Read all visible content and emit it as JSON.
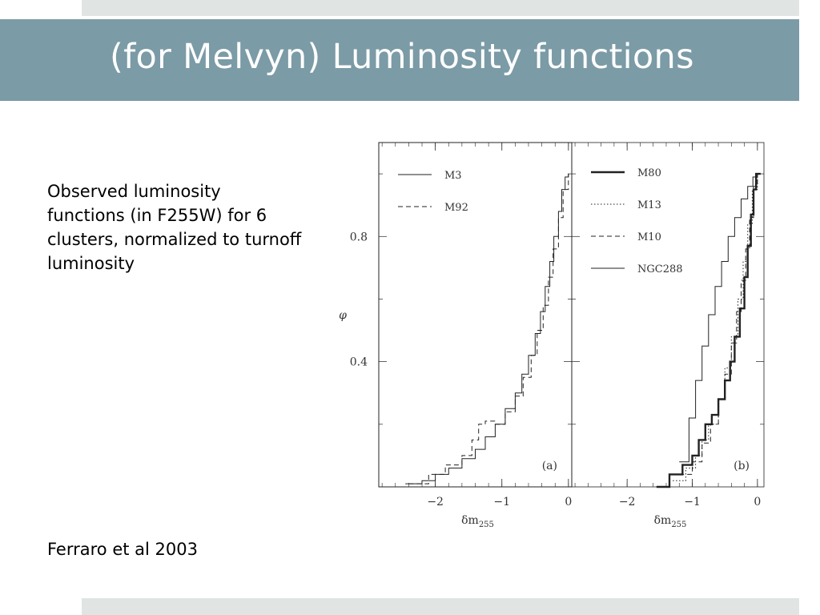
{
  "slide": {
    "title": "(for Melvyn) Luminosity functions",
    "body_text": "Observed luminosity functions (in F255W) for 6 clusters, normalized to turnoff luminosity",
    "citation": "Ferraro et al 2003"
  },
  "colors": {
    "title_bar": "#7b9ba6",
    "strips": "#e0e5e4",
    "title_text": "#ffffff"
  },
  "chart_data": [
    {
      "panel": "a",
      "type": "line",
      "panel_label": "(a)",
      "xlabel": "δm",
      "xlabel_sub": "255",
      "ylabel": "φ",
      "xlim": [
        -2.85,
        0.05
      ],
      "ylim": [
        0,
        1.1
      ],
      "xticks": [
        -2,
        -1,
        0
      ],
      "xtick_labels": [
        "−2",
        "−1",
        "0"
      ],
      "yticks": [
        0.4,
        0.8
      ],
      "ytick_labels": [
        "0.4",
        "0.8"
      ],
      "legend_position": "top-left",
      "series": [
        {
          "name": "M3",
          "style": "solid",
          "x": [
            -2.45,
            -2.2,
            -2.0,
            -1.8,
            -1.6,
            -1.4,
            -1.25,
            -1.1,
            -0.95,
            -0.8,
            -0.7,
            -0.6,
            -0.5,
            -0.42,
            -0.35,
            -0.28,
            -0.22,
            -0.15,
            -0.1,
            -0.05,
            0
          ],
          "y": [
            0.01,
            0.02,
            0.04,
            0.06,
            0.09,
            0.12,
            0.16,
            0.2,
            0.25,
            0.3,
            0.36,
            0.42,
            0.49,
            0.56,
            0.64,
            0.72,
            0.8,
            0.88,
            0.95,
            0.99,
            1.0
          ]
        },
        {
          "name": "M92",
          "style": "dashed",
          "x": [
            -2.4,
            -2.1,
            -1.85,
            -1.6,
            -1.45,
            -1.35,
            -1.25,
            -1.1,
            -0.95,
            -0.8,
            -0.68,
            -0.56,
            -0.47,
            -0.38,
            -0.3,
            -0.23,
            -0.15,
            -0.08,
            0
          ],
          "y": [
            0.01,
            0.04,
            0.07,
            0.1,
            0.15,
            0.2,
            0.21,
            0.2,
            0.24,
            0.29,
            0.35,
            0.42,
            0.5,
            0.58,
            0.67,
            0.76,
            0.86,
            0.95,
            1.0
          ]
        }
      ]
    },
    {
      "panel": "b",
      "type": "line",
      "panel_label": "(b)",
      "xlabel": "δm",
      "xlabel_sub": "255",
      "xlim": [
        -2.85,
        0.1
      ],
      "ylim": [
        0,
        1.1
      ],
      "xticks": [
        -2,
        -1,
        0
      ],
      "xtick_labels": [
        "−2",
        "−1",
        "0"
      ],
      "legend_position": "top-left",
      "series": [
        {
          "name": "M80",
          "style": "thick",
          "x": [
            -1.55,
            -1.35,
            -1.15,
            -1.0,
            -0.9,
            -0.8,
            -0.7,
            -0.6,
            -0.5,
            -0.42,
            -0.35,
            -0.27,
            -0.2,
            -0.15,
            -0.1,
            -0.06,
            -0.02,
            0.05
          ],
          "y": [
            0.0,
            0.04,
            0.07,
            0.1,
            0.15,
            0.2,
            0.23,
            0.28,
            0.34,
            0.4,
            0.48,
            0.57,
            0.67,
            0.77,
            0.87,
            0.95,
            1.0,
            1.0
          ]
        },
        {
          "name": "M13",
          "style": "dotted",
          "x": [
            -1.3,
            -1.1,
            -0.95,
            -0.85,
            -0.75,
            -0.6,
            -0.5,
            -0.4,
            -0.3,
            -0.22,
            -0.15,
            -0.08,
            0
          ],
          "y": [
            0.02,
            0.06,
            0.1,
            0.15,
            0.2,
            0.28,
            0.38,
            0.48,
            0.6,
            0.72,
            0.84,
            0.95,
            1.0
          ]
        },
        {
          "name": "M10",
          "style": "dashed",
          "x": [
            -1.2,
            -1.0,
            -0.85,
            -0.72,
            -0.6,
            -0.5,
            -0.4,
            -0.32,
            -0.25,
            -0.18,
            -0.12,
            -0.06,
            0
          ],
          "y": [
            0.04,
            0.08,
            0.14,
            0.2,
            0.28,
            0.36,
            0.46,
            0.56,
            0.66,
            0.76,
            0.86,
            0.96,
            1.0
          ]
        },
        {
          "name": "NGC288",
          "style": "solid",
          "x": [
            -1.2,
            -1.05,
            -0.95,
            -0.85,
            -0.75,
            -0.65,
            -0.55,
            -0.45,
            -0.35,
            -0.25,
            -0.15,
            -0.07,
            0
          ],
          "y": [
            0.08,
            0.22,
            0.34,
            0.45,
            0.55,
            0.64,
            0.72,
            0.8,
            0.86,
            0.92,
            0.96,
            0.99,
            1.0
          ]
        }
      ]
    }
  ]
}
